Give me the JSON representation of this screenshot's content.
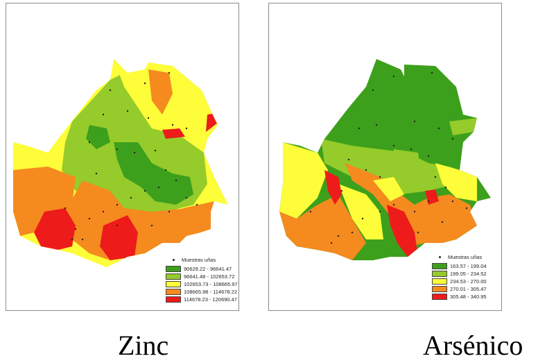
{
  "legend_title": "Muestras uñas",
  "colors": {
    "dark_green": "#3da01c",
    "light_green": "#95cb2a",
    "yellow": "#fdfd39",
    "orange": "#f58a1f",
    "red": "#ee1b1b"
  },
  "maps": [
    {
      "id": "zinc",
      "caption": "Zinc",
      "classes": [
        {
          "label": "90629.22 - 96641.47",
          "color": "#3da01c"
        },
        {
          "label": "96641.48 - 102653.72",
          "color": "#95cb2a"
        },
        {
          "label": "102653.73 - 108665.97",
          "color": "#fdfd39"
        },
        {
          "label": "108665.98 - 114678.22",
          "color": "#f58a1f"
        },
        {
          "label": "114678.23 - 120690.47",
          "color": "#ee1b1b"
        }
      ]
    },
    {
      "id": "arsenic",
      "caption": "Arsénico",
      "classes": [
        {
          "label": "163.57 - 199.04",
          "color": "#3da01c"
        },
        {
          "label": "199.05 - 234.52",
          "color": "#95cb2a"
        },
        {
          "label": "234.53 - 270.00",
          "color": "#fdfd39"
        },
        {
          "label": "270.01 - 305.47",
          "color": "#f58a1f"
        },
        {
          "label": "305.48 - 340.95",
          "color": "#ee1b1b"
        }
      ]
    }
  ]
}
